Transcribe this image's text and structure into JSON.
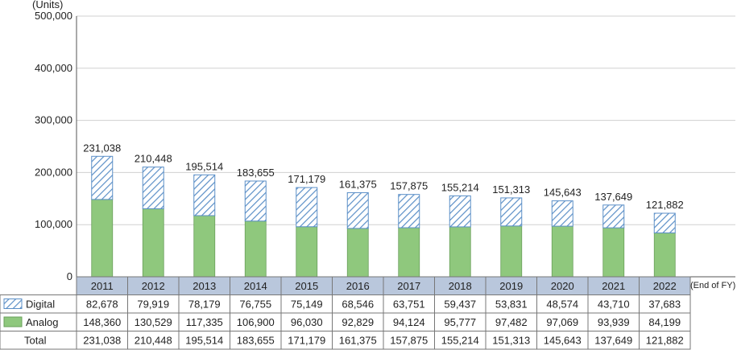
{
  "chart_data": {
    "type": "bar",
    "stacked": true,
    "unit_label": "(Units)",
    "x_suffix": "(End of FY)",
    "categories": [
      "2011",
      "2012",
      "2013",
      "2014",
      "2015",
      "2016",
      "2017",
      "2018",
      "2019",
      "2020",
      "2021",
      "2022"
    ],
    "series": [
      {
        "name": "Analog",
        "style": "solid",
        "color": "#8fc87d",
        "values": [
          148360,
          130529,
          117335,
          106900,
          96030,
          92829,
          94124,
          95777,
          97482,
          97069,
          93939,
          84199
        ],
        "display": [
          "148,360",
          "130,529",
          "117,335",
          "106,900",
          "96,030",
          "92,829",
          "94,124",
          "95,777",
          "97,482",
          "97,069",
          "93,939",
          "84,199"
        ]
      },
      {
        "name": "Digital",
        "style": "hatched",
        "color": "#5b8fc7",
        "values": [
          82678,
          79919,
          78179,
          76755,
          75149,
          68546,
          63751,
          59437,
          53831,
          48574,
          43710,
          37683
        ],
        "display": [
          "82,678",
          "79,919",
          "78,179",
          "76,755",
          "75,149",
          "68,546",
          "63,751",
          "59,437",
          "53,831",
          "48,574",
          "43,710",
          "37,683"
        ]
      }
    ],
    "totals_name": "Total",
    "totals": [
      "231,038",
      "210,448",
      "195,514",
      "183,655",
      "171,179",
      "161,375",
      "157,875",
      "155,214",
      "151,313",
      "145,643",
      "137,649",
      "121,882"
    ],
    "ylim": [
      0,
      500000
    ],
    "yticks": [
      0,
      100000,
      200000,
      300000,
      400000,
      500000
    ],
    "ytick_labels": [
      "0",
      "100,000",
      "200,000",
      "300,000",
      "400,000",
      "500,000"
    ],
    "grid": true,
    "legend": "data-table-left"
  }
}
